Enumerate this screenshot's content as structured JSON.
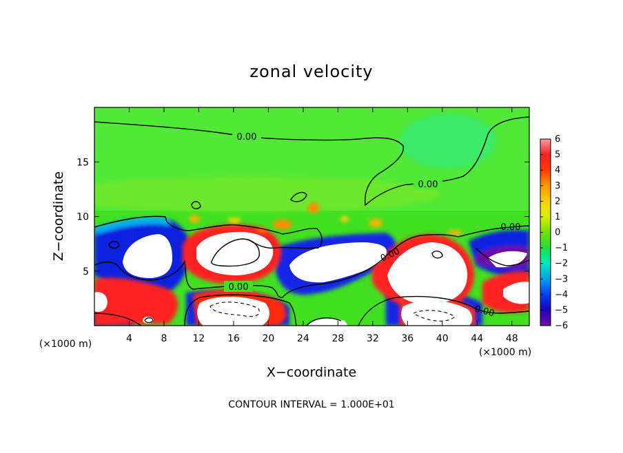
{
  "chart_data": {
    "type": "heatmap",
    "title": "zonal velocity",
    "xlabel": "X−coordinate",
    "ylabel": "Z−coordinate",
    "x_unit": "(×1000 m)",
    "y_unit": "(×1000 m)",
    "x_ticks": [
      "4",
      "8",
      "12",
      "16",
      "20",
      "24",
      "28",
      "32",
      "36",
      "40",
      "44",
      "48"
    ],
    "x_tick_values": [
      4,
      8,
      12,
      16,
      20,
      24,
      28,
      32,
      36,
      40,
      44,
      48
    ],
    "y_ticks": [
      "5",
      "10",
      "15"
    ],
    "y_tick_values": [
      5,
      10,
      15
    ],
    "xlim": [
      0,
      50
    ],
    "ylim": [
      0,
      20
    ],
    "colorbar": {
      "labels": [
        "6",
        "5",
        "4",
        "3",
        "2",
        "1",
        "0",
        "−1",
        "−2",
        "−3",
        "−4",
        "−5",
        "−6"
      ],
      "values": [
        6,
        5,
        4,
        3,
        2,
        1,
        0,
        -1,
        -2,
        -3,
        -4,
        -5,
        -6
      ],
      "colors": [
        "#f7a0a0",
        "#ff2020",
        "#ff3a00",
        "#ff9a00",
        "#ffd000",
        "#d8f000",
        "#70e000",
        "#20e040",
        "#00e8c0",
        "#00a0f0",
        "#0040f0",
        "#2000c0",
        "#7010a0"
      ]
    },
    "contour_labels": [
      "0.00",
      "0.00",
      "0.00",
      "0.00",
      "0.00",
      "0.00"
    ],
    "footer": "CONTOUR INTERVAL = 1.000E+01"
  }
}
